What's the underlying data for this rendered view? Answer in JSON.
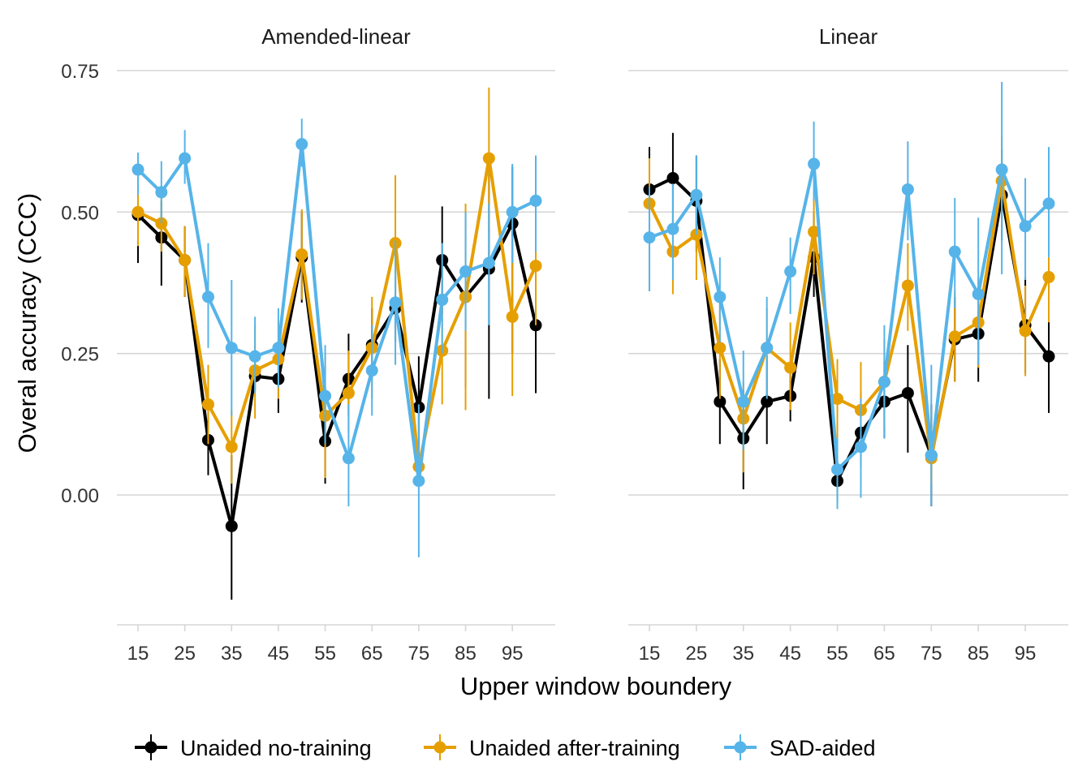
{
  "chart_data": {
    "type": "line",
    "xlabel": "Upper window boundery",
    "ylabel": "Overal accuracy (CCC)",
    "x": [
      15,
      20,
      25,
      30,
      35,
      40,
      45,
      50,
      55,
      60,
      65,
      70,
      75,
      80,
      85,
      90,
      95,
      100
    ],
    "xticks": [
      "15",
      "25",
      "35",
      "45",
      "55",
      "65",
      "75",
      "85",
      "95"
    ],
    "yticks": [
      "0.00",
      "0.25",
      "0.50",
      "0.75"
    ],
    "ylim": [
      -0.22,
      0.75
    ],
    "grid": true,
    "legend_position": "bottom",
    "colors": {
      "no_training": "#000000",
      "after_training": "#E69F00",
      "sad_aided": "#56B4E9"
    },
    "legend": [
      {
        "key": "no_training",
        "label": "Unaided no-training"
      },
      {
        "key": "after_training",
        "label": "Unaided after-training"
      },
      {
        "key": "sad_aided",
        "label": "SAD-aided"
      }
    ],
    "panels": [
      {
        "title": "Amended-linear",
        "series": [
          {
            "key": "no_training",
            "name": "Unaided no-training",
            "values": [
              0.495,
              0.455,
              0.415,
              0.097,
              -0.055,
              0.21,
              0.205,
              0.42,
              0.095,
              0.205,
              0.265,
              0.33,
              0.155,
              0.415,
              0.35,
              0.4,
              0.48,
              0.3
            ],
            "lower": [
              0.41,
              0.37,
              0.35,
              0.035,
              -0.185,
              0.185,
              0.145,
              0.34,
              0.02,
              0.14,
              0.205,
              0.27,
              0.06,
              0.32,
              0.19,
              0.17,
              0.25,
              0.18
            ],
            "upper": [
              0.56,
              0.52,
              0.475,
              0.18,
              0.07,
              0.235,
              0.26,
              0.5,
              0.17,
              0.285,
              0.33,
              0.4,
              0.245,
              0.51,
              0.5,
              0.6,
              0.58,
              0.42
            ]
          },
          {
            "key": "after_training",
            "name": "Unaided after-training",
            "values": [
              0.5,
              0.48,
              0.415,
              0.16,
              0.085,
              0.22,
              0.24,
              0.425,
              0.14,
              0.18,
              0.26,
              0.445,
              0.05,
              0.255,
              0.35,
              0.595,
              0.315,
              0.405
            ],
            "lower": [
              0.44,
              0.43,
              0.35,
              0.09,
              0.02,
              0.135,
              0.17,
              0.345,
              0.03,
              0.11,
              0.17,
              0.32,
              0.02,
              0.16,
              0.15,
              0.47,
              0.175,
              0.3
            ],
            "upper": [
              0.565,
              0.54,
              0.475,
              0.23,
              0.15,
              0.3,
              0.31,
              0.505,
              0.25,
              0.255,
              0.35,
              0.565,
              0.08,
              0.345,
              0.515,
              0.72,
              0.455,
              0.5
            ]
          },
          {
            "key": "sad_aided",
            "name": "SAD-aided",
            "values": [
              0.575,
              0.535,
              0.595,
              0.35,
              0.26,
              0.245,
              0.26,
              0.62,
              0.175,
              0.065,
              0.22,
              0.34,
              0.025,
              0.345,
              0.395,
              0.41,
              0.5,
              0.52
            ],
            "lower": [
              0.53,
              0.48,
              0.55,
              0.26,
              0.14,
              0.18,
              0.19,
              0.58,
              0.09,
              -0.02,
              0.14,
              0.23,
              -0.11,
              0.25,
              0.29,
              0.3,
              0.41,
              0.43
            ],
            "upper": [
              0.605,
              0.59,
              0.645,
              0.445,
              0.38,
              0.315,
              0.33,
              0.665,
              0.265,
              0.16,
              0.3,
              0.45,
              0.16,
              0.445,
              0.5,
              0.515,
              0.585,
              0.6
            ]
          }
        ]
      },
      {
        "title": "Linear",
        "series": [
          {
            "key": "no_training",
            "name": "Unaided no-training",
            "values": [
              0.54,
              0.56,
              0.52,
              0.165,
              0.1,
              0.165,
              0.175,
              0.42,
              0.025,
              0.11,
              0.165,
              0.18,
              0.07,
              0.275,
              0.285,
              0.53,
              0.3,
              0.245
            ],
            "lower": [
              0.46,
              0.475,
              0.43,
              0.09,
              0.01,
              0.09,
              0.13,
              0.35,
              -0.01,
              0.05,
              0.1,
              0.075,
              -0.02,
              0.2,
              0.2,
              0.45,
              0.215,
              0.145
            ],
            "upper": [
              0.615,
              0.64,
              0.6,
              0.24,
              0.185,
              0.245,
              0.23,
              0.5,
              0.07,
              0.18,
              0.235,
              0.265,
              0.16,
              0.35,
              0.37,
              0.61,
              0.385,
              0.31
            ]
          },
          {
            "key": "after_training",
            "name": "Unaided after-training",
            "values": [
              0.515,
              0.43,
              0.46,
              0.26,
              0.135,
              0.26,
              0.225,
              0.465,
              0.17,
              0.15,
              0.2,
              0.37,
              0.065,
              0.28,
              0.305,
              0.555,
              0.29,
              0.385
            ],
            "lower": [
              0.44,
              0.355,
              0.38,
              0.17,
              0.04,
              0.18,
              0.15,
              0.39,
              0.1,
              0.085,
              0.12,
              0.29,
              0.02,
              0.2,
              0.225,
              0.47,
              0.21,
              0.305
            ],
            "upper": [
              0.595,
              0.5,
              0.535,
              0.34,
              0.2,
              0.33,
              0.305,
              0.535,
              0.24,
              0.235,
              0.275,
              0.445,
              0.12,
              0.36,
              0.385,
              0.635,
              0.37,
              0.465
            ]
          },
          {
            "key": "sad_aided",
            "name": "SAD-aided",
            "values": [
              0.455,
              0.47,
              0.53,
              0.35,
              0.165,
              0.26,
              0.395,
              0.585,
              0.045,
              0.085,
              0.2,
              0.54,
              0.07,
              0.43,
              0.355,
              0.575,
              0.475,
              0.515
            ],
            "lower": [
              0.36,
              0.38,
              0.46,
              0.27,
              0.08,
              0.17,
              0.32,
              0.52,
              -0.025,
              -0.005,
              0.1,
              0.45,
              -0.02,
              0.33,
              0.23,
              0.39,
              0.38,
              0.42
            ],
            "upper": [
              0.545,
              0.55,
              0.6,
              0.42,
              0.255,
              0.35,
              0.455,
              0.66,
              0.1,
              0.17,
              0.3,
              0.625,
              0.23,
              0.525,
              0.49,
              0.73,
              0.56,
              0.615
            ]
          }
        ]
      }
    ]
  }
}
